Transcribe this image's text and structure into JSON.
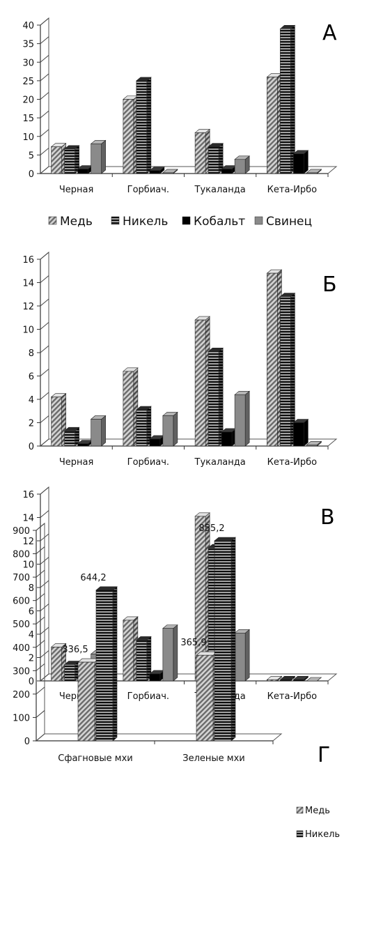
{
  "colors": {
    "copper": "#9a9a9a",
    "nickel": "#1e1e1e",
    "cobalt": "#000000",
    "lead": "#8a8a8a"
  },
  "legend_main": {
    "items": [
      "Медь",
      "Никель",
      "Кобальт",
      "Свинец"
    ],
    "placement": "bottom"
  },
  "chart_data": [
    {
      "type": "bar",
      "panel_letter": "А",
      "categories": [
        "Черная",
        "Горбиач.",
        "Тукаланда",
        "Кета-Ирбо"
      ],
      "series": [
        {
          "name": "Медь",
          "values": [
            7.2,
            20,
            11,
            26
          ]
        },
        {
          "name": "Никель",
          "values": [
            6.6,
            25,
            7.2,
            39
          ]
        },
        {
          "name": "Кобальт",
          "values": [
            1.2,
            0.8,
            1.2,
            5.3
          ]
        },
        {
          "name": "Свинец",
          "values": [
            8,
            0.2,
            3.8,
            0.2
          ]
        }
      ],
      "ylim": [
        0,
        40
      ],
      "yticks": [
        "0",
        "5",
        "10",
        "15",
        "20",
        "25",
        "30",
        "35",
        "40"
      ],
      "grid": false
    },
    {
      "type": "bar",
      "panel_letter": "Б",
      "categories": [
        "Черная",
        "Горбиач.",
        "Тукаланда",
        "Кета-Ирбо"
      ],
      "series": [
        {
          "name": "Медь",
          "values": [
            4.2,
            6.4,
            10.8,
            14.8
          ]
        },
        {
          "name": "Никель",
          "values": [
            1.3,
            3.1,
            8.1,
            12.8
          ]
        },
        {
          "name": "Кобальт",
          "values": [
            0.2,
            0.6,
            1.2,
            2
          ]
        },
        {
          "name": "Свинец",
          "values": [
            2.3,
            2.6,
            4.4,
            0.1
          ]
        }
      ],
      "ylim": [
        0,
        16
      ],
      "yticks": [
        "0",
        "2",
        "4",
        "6",
        "8",
        "10",
        "12",
        "14",
        "16"
      ],
      "grid": false
    },
    {
      "type": "bar",
      "panel_letter": "В",
      "categories": [
        "Черная",
        "Горбиач.",
        "Тукаланда",
        "Кета-Ирбо"
      ],
      "series": [
        {
          "name": "Медь",
          "values": [
            2.9,
            5.2,
            14.1,
            0.1
          ]
        },
        {
          "name": "Никель",
          "values": [
            1.4,
            3.5,
            11.4,
            0.1
          ]
        },
        {
          "name": "Кобальт",
          "values": [
            0.2,
            0.6,
            1.4,
            0.1
          ]
        },
        {
          "name": "Свинец",
          "values": [
            2.3,
            4.5,
            4.1,
            0
          ]
        }
      ],
      "ylim": [
        0,
        16
      ],
      "yticks": [
        "0",
        "2",
        "4",
        "6",
        "8",
        "10",
        "12",
        "14",
        "16"
      ],
      "grid": false
    },
    {
      "type": "bar",
      "panel_letter": "Г",
      "categories": [
        "Сфагновые мхи",
        "Зеленые мхи"
      ],
      "series": [
        {
          "name": "Медь",
          "values": [
            336.5,
            365.9
          ],
          "labels": [
            "336,5",
            "365,9"
          ]
        },
        {
          "name": "Никель",
          "values": [
            644.2,
            855.2
          ],
          "labels": [
            "644,2",
            "855,2"
          ]
        }
      ],
      "ylim": [
        0,
        900
      ],
      "yticks": [
        "0",
        "100",
        "200",
        "300",
        "400",
        "500",
        "600",
        "700",
        "800",
        "900"
      ],
      "legend": {
        "items": [
          "Медь",
          "Никель"
        ],
        "placement": "right"
      },
      "grid": false
    }
  ]
}
